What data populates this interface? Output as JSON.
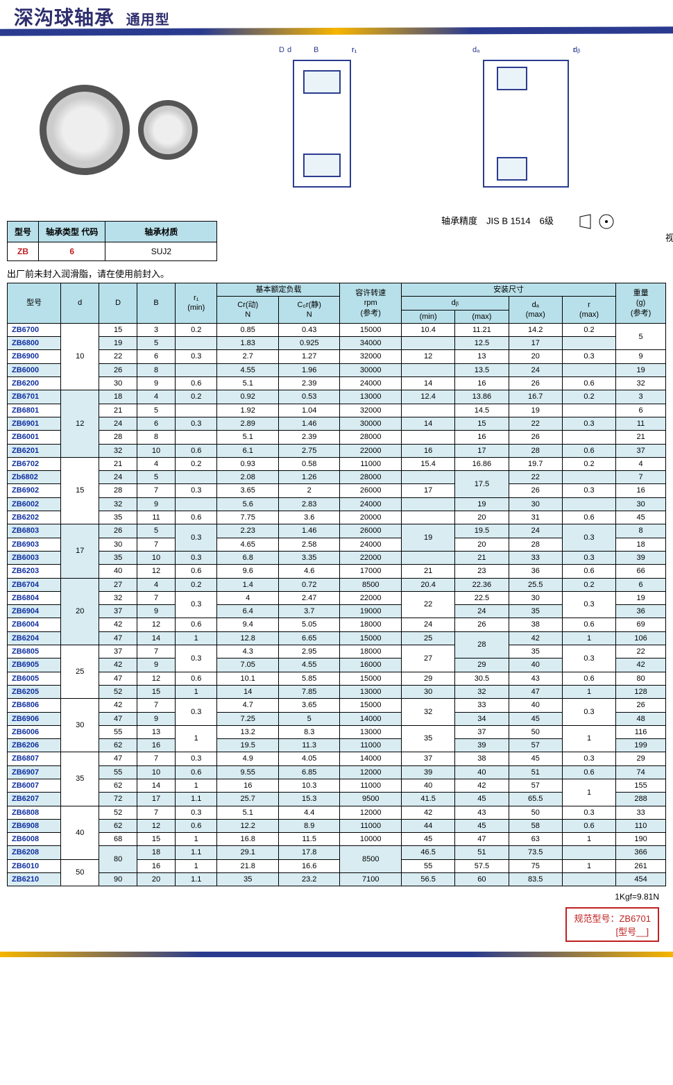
{
  "header": {
    "title": "深沟球轴承",
    "subtitle": "通用型"
  },
  "mini_table": {
    "headers": [
      "型号",
      "轴承类型\n代码",
      "轴承材质"
    ],
    "row": [
      "ZB",
      "6",
      "SUJ2"
    ]
  },
  "note": "出厂前未封入润滑脂，请在使用前封入。",
  "precision": "轴承精度　JIS B 1514　6级",
  "angle_std": "视角标准：第一视角",
  "diagram_labels": {
    "B": "B",
    "r1": "r₁",
    "D": "D",
    "d": "d",
    "da": "dₐ",
    "db": "dᵦ",
    "r": "r"
  },
  "main_headers": {
    "model": "型号",
    "d": "d",
    "D": "D",
    "B": "B",
    "r1": "r₁\n(min)",
    "basic_load": "基本额定负载",
    "Cr": "Cr(动)\nN",
    "Cor": "C₀r(静)\nN",
    "rpm": "容许转速\nrpm\n(参考)",
    "install": "安装尺寸",
    "db": "dᵦ",
    "dbmin": "(min)",
    "dbmax": "(max)",
    "da": "dₐ\n(max)",
    "r": "r\n(max)",
    "weight": "重量\n(g)\n(参考)"
  },
  "d_groups": [
    {
      "d": "10",
      "rows": [
        "ZB6700",
        "ZB6800",
        "ZB6900",
        "ZB6000",
        "ZB6200"
      ]
    },
    {
      "d": "12",
      "rows": [
        "ZB6701",
        "ZB6801",
        "ZB6901",
        "ZB6001",
        "ZB6201"
      ]
    },
    {
      "d": "15",
      "rows": [
        "ZB6702",
        "Zb6802",
        "ZB6902",
        "ZB6002",
        "ZB6202"
      ]
    },
    {
      "d": "17",
      "rows": [
        "ZB6803",
        "ZB6903",
        "ZB6003",
        "ZB6203"
      ]
    },
    {
      "d": "20",
      "rows": [
        "ZB6704",
        "ZB6804",
        "ZB6904",
        "ZB6004",
        "ZB6204"
      ]
    },
    {
      "d": "25",
      "rows": [
        "ZB6805",
        "ZB6905",
        "ZB6005",
        "ZB6205"
      ]
    },
    {
      "d": "30",
      "rows": [
        "ZB6806",
        "ZB6906",
        "ZB6006",
        "ZB6206"
      ]
    },
    {
      "d": "35",
      "rows": [
        "ZB6807",
        "ZB6907",
        "ZB6007",
        "ZB6207"
      ]
    },
    {
      "d": "40",
      "rows": [
        "ZB6808",
        "ZB6908",
        "ZB6008",
        "ZB6208"
      ]
    },
    {
      "d": "50",
      "rows": [
        "ZB6010",
        "ZB6210"
      ]
    }
  ],
  "rows": [
    {
      "m": "ZB6700",
      "D": "15",
      "B": "3",
      "r1": "0.2",
      "Cr": "0.85",
      "Cor": "0.43",
      "rpm": "15000",
      "dbmin": "10.4",
      "dbmax": "11.21",
      "da": "14.2",
      "r": "0.2",
      "g": "5",
      "alt": 0,
      "g_span": 2
    },
    {
      "m": "ZB6800",
      "D": "19",
      "B": "5",
      "r1": "",
      "Cr": "1.83",
      "Cor": "0.925",
      "rpm": "34000",
      "dbmin": "",
      "dbmax": "12.5",
      "da": "17",
      "r": "",
      "g": "",
      "alt": 1
    },
    {
      "m": "ZB6900",
      "D": "22",
      "B": "6",
      "r1": "0.3",
      "Cr": "2.7",
      "Cor": "1.27",
      "rpm": "32000",
      "dbmin": "12",
      "dbmax": "13",
      "da": "20",
      "r": "0.3",
      "g": "9",
      "alt": 0
    },
    {
      "m": "ZB6000",
      "D": "26",
      "B": "8",
      "r1": "",
      "Cr": "4.55",
      "Cor": "1.96",
      "rpm": "30000",
      "dbmin": "",
      "dbmax": "13.5",
      "da": "24",
      "r": "",
      "g": "19",
      "alt": 1
    },
    {
      "m": "ZB6200",
      "D": "30",
      "B": "9",
      "r1": "0.6",
      "Cr": "5.1",
      "Cor": "2.39",
      "rpm": "24000",
      "dbmin": "14",
      "dbmax": "16",
      "da": "26",
      "r": "0.6",
      "g": "32",
      "alt": 0
    },
    {
      "m": "ZB6701",
      "D": "18",
      "B": "4",
      "r1": "0.2",
      "Cr": "0.92",
      "Cor": "0.53",
      "rpm": "13000",
      "dbmin": "12.4",
      "dbmax": "13.86",
      "da": "16.7",
      "r": "0.2",
      "g": "3",
      "alt": 1
    },
    {
      "m": "ZB6801",
      "D": "21",
      "B": "5",
      "r1": "",
      "Cr": "1.92",
      "Cor": "1.04",
      "rpm": "32000",
      "dbmin": "",
      "dbmax": "14.5",
      "da": "19",
      "r": "",
      "g": "6",
      "alt": 0
    },
    {
      "m": "ZB6901",
      "D": "24",
      "B": "6",
      "r1": "0.3",
      "Cr": "2.89",
      "Cor": "1.46",
      "rpm": "30000",
      "dbmin": "14",
      "dbmax": "15",
      "da": "22",
      "r": "0.3",
      "g": "11",
      "alt": 1
    },
    {
      "m": "ZB6001",
      "D": "28",
      "B": "8",
      "r1": "",
      "Cr": "5.1",
      "Cor": "2.39",
      "rpm": "28000",
      "dbmin": "",
      "dbmax": "16",
      "da": "26",
      "r": "",
      "g": "21",
      "alt": 0
    },
    {
      "m": "ZB6201",
      "D": "32",
      "B": "10",
      "r1": "0.6",
      "Cr": "6.1",
      "Cor": "2.75",
      "rpm": "22000",
      "dbmin": "16",
      "dbmax": "17",
      "da": "28",
      "r": "0.6",
      "g": "37",
      "alt": 1
    },
    {
      "m": "ZB6702",
      "D": "21",
      "B": "4",
      "r1": "0.2",
      "Cr": "0.93",
      "Cor": "0.58",
      "rpm": "11000",
      "dbmin": "15.4",
      "dbmax": "16.86",
      "da": "19.7",
      "r": "0.2",
      "g": "4",
      "alt": 0
    },
    {
      "m": "Zb6802",
      "D": "24",
      "B": "5",
      "r1": "",
      "Cr": "2.08",
      "Cor": "1.26",
      "rpm": "28000",
      "dbmin": "",
      "dbmax": "17.5",
      "da": "22",
      "r": "",
      "g": "7",
      "alt": 1,
      "dbmax_span": 2
    },
    {
      "m": "ZB6902",
      "D": "28",
      "B": "7",
      "r1": "0.3",
      "Cr": "3.65",
      "Cor": "2",
      "rpm": "26000",
      "dbmin": "17",
      "dbmax": "",
      "da": "26",
      "r": "0.3",
      "g": "16",
      "alt": 0
    },
    {
      "m": "ZB6002",
      "D": "32",
      "B": "9",
      "r1": "",
      "Cr": "5.6",
      "Cor": "2.83",
      "rpm": "24000",
      "dbmin": "",
      "dbmax": "19",
      "da": "30",
      "r": "",
      "g": "30",
      "alt": 1
    },
    {
      "m": "ZB6202",
      "D": "35",
      "B": "11",
      "r1": "0.6",
      "Cr": "7.75",
      "Cor": "3.6",
      "rpm": "20000",
      "dbmin": "",
      "dbmax": "20",
      "da": "31",
      "r": "0.6",
      "g": "45",
      "alt": 0
    },
    {
      "m": "ZB6803",
      "D": "26",
      "B": "5",
      "r1": "0.3",
      "r1_span": 2,
      "Cr": "2.23",
      "Cor": "1.46",
      "rpm": "26000",
      "dbmin": "19",
      "dbmin_span": 2,
      "dbmax": "19.5",
      "da": "24",
      "r": "0.3",
      "r_span": 2,
      "g": "8",
      "alt": 1
    },
    {
      "m": "ZB6903",
      "D": "30",
      "B": "7",
      "r1": "",
      "Cr": "4.65",
      "Cor": "2.58",
      "rpm": "24000",
      "dbmin": "",
      "dbmax": "20",
      "da": "28",
      "r": "",
      "g": "18",
      "alt": 0
    },
    {
      "m": "ZB6003",
      "D": "35",
      "B": "10",
      "r1": "0.3",
      "Cr": "6.8",
      "Cor": "3.35",
      "rpm": "22000",
      "dbmin": "",
      "dbmax": "21",
      "da": "33",
      "r": "0.3",
      "g": "39",
      "alt": 1
    },
    {
      "m": "ZB6203",
      "D": "40",
      "B": "12",
      "r1": "0.6",
      "Cr": "9.6",
      "Cor": "4.6",
      "rpm": "17000",
      "dbmin": "21",
      "dbmax": "23",
      "da": "36",
      "r": "0.6",
      "g": "66",
      "alt": 0
    },
    {
      "m": "ZB6704",
      "D": "27",
      "B": "4",
      "r1": "0.2",
      "Cr": "1.4",
      "Cor": "0.72",
      "rpm": "8500",
      "dbmin": "20.4",
      "dbmax": "22.36",
      "da": "25.5",
      "r": "0.2",
      "g": "6",
      "alt": 1
    },
    {
      "m": "ZB6804",
      "D": "32",
      "B": "7",
      "r1": "0.3",
      "r1_span": 2,
      "Cr": "4",
      "Cor": "2.47",
      "rpm": "22000",
      "dbmin": "22",
      "dbmin_span": 2,
      "dbmax": "22.5",
      "da": "30",
      "r": "0.3",
      "r_span": 2,
      "g": "19",
      "alt": 0
    },
    {
      "m": "ZB6904",
      "D": "37",
      "B": "9",
      "r1": "",
      "Cr": "6.4",
      "Cor": "3.7",
      "rpm": "19000",
      "dbmin": "",
      "dbmax": "24",
      "da": "35",
      "r": "",
      "g": "36",
      "alt": 1
    },
    {
      "m": "ZB6004",
      "D": "42",
      "B": "12",
      "r1": "0.6",
      "Cr": "9.4",
      "Cor": "5.05",
      "rpm": "18000",
      "dbmin": "24",
      "dbmax": "26",
      "da": "38",
      "r": "0.6",
      "g": "69",
      "alt": 0
    },
    {
      "m": "ZB6204",
      "D": "47",
      "B": "14",
      "r1": "1",
      "Cr": "12.8",
      "Cor": "6.65",
      "rpm": "15000",
      "dbmin": "25",
      "dbmax": "28",
      "dbmax_span": 2,
      "da": "42",
      "r": "1",
      "g": "106",
      "alt": 1
    },
    {
      "m": "ZB6805",
      "D": "37",
      "B": "7",
      "r1": "0.3",
      "r1_span": 2,
      "Cr": "4.3",
      "Cor": "2.95",
      "rpm": "18000",
      "dbmin": "27",
      "dbmin_span": 2,
      "dbmax": "",
      "da": "35",
      "r": "0.3",
      "r_span": 2,
      "g": "22",
      "alt": 0
    },
    {
      "m": "ZB6905",
      "D": "42",
      "B": "9",
      "r1": "",
      "Cr": "7.05",
      "Cor": "4.55",
      "rpm": "16000",
      "dbmin": "",
      "dbmax": "29",
      "da": "40",
      "r": "",
      "g": "42",
      "alt": 1
    },
    {
      "m": "ZB6005",
      "D": "47",
      "B": "12",
      "r1": "0.6",
      "Cr": "10.1",
      "Cor": "5.85",
      "rpm": "15000",
      "dbmin": "29",
      "dbmax": "30.5",
      "da": "43",
      "r": "0.6",
      "g": "80",
      "alt": 0
    },
    {
      "m": "ZB6205",
      "D": "52",
      "B": "15",
      "r1": "1",
      "Cr": "14",
      "Cor": "7.85",
      "rpm": "13000",
      "dbmin": "30",
      "dbmax": "32",
      "da": "47",
      "r": "1",
      "g": "128",
      "alt": 1
    },
    {
      "m": "ZB6806",
      "D": "42",
      "B": "7",
      "r1": "0.3",
      "r1_span": 2,
      "Cr": "4.7",
      "Cor": "3.65",
      "rpm": "15000",
      "dbmin": "32",
      "dbmin_span": 2,
      "dbmax": "33",
      "da": "40",
      "r": "0.3",
      "r_span": 2,
      "g": "26",
      "alt": 0
    },
    {
      "m": "ZB6906",
      "D": "47",
      "B": "9",
      "r1": "",
      "Cr": "7.25",
      "Cor": "5",
      "rpm": "14000",
      "dbmin": "",
      "dbmax": "34",
      "da": "45",
      "r": "",
      "g": "48",
      "alt": 1
    },
    {
      "m": "ZB6006",
      "D": "55",
      "B": "13",
      "r1": "1",
      "r1_span": 2,
      "Cr": "13.2",
      "Cor": "8.3",
      "rpm": "13000",
      "dbmin": "35",
      "dbmin_span": 2,
      "dbmax": "37",
      "da": "50",
      "r": "1",
      "r_span": 2,
      "g": "116",
      "alt": 0
    },
    {
      "m": "ZB6206",
      "D": "62",
      "B": "16",
      "r1": "",
      "Cr": "19.5",
      "Cor": "11.3",
      "rpm": "11000",
      "dbmin": "",
      "dbmax": "39",
      "da": "57",
      "r": "",
      "g": "199",
      "alt": 1
    },
    {
      "m": "ZB6807",
      "D": "47",
      "B": "7",
      "r1": "0.3",
      "Cr": "4.9",
      "Cor": "4.05",
      "rpm": "14000",
      "dbmin": "37",
      "dbmax": "38",
      "da": "45",
      "r": "0.3",
      "g": "29",
      "alt": 0
    },
    {
      "m": "ZB6907",
      "D": "55",
      "B": "10",
      "r1": "0.6",
      "Cr": "9.55",
      "Cor": "6.85",
      "rpm": "12000",
      "dbmin": "39",
      "dbmax": "40",
      "da": "51",
      "r": "0.6",
      "g": "74",
      "alt": 1
    },
    {
      "m": "ZB6007",
      "D": "62",
      "B": "14",
      "r1": "1",
      "Cr": "16",
      "Cor": "10.3",
      "rpm": "11000",
      "dbmin": "40",
      "dbmax": "42",
      "da": "57",
      "r": "1",
      "r_span": 2,
      "g": "155",
      "alt": 0
    },
    {
      "m": "ZB6207",
      "D": "72",
      "B": "17",
      "r1": "1.1",
      "Cr": "25.7",
      "Cor": "15.3",
      "rpm": "9500",
      "dbmin": "41.5",
      "dbmax": "45",
      "da": "65.5",
      "r": "",
      "g": "288",
      "alt": 1
    },
    {
      "m": "ZB6808",
      "D": "52",
      "B": "7",
      "r1": "0.3",
      "Cr": "5.1",
      "Cor": "4.4",
      "rpm": "12000",
      "dbmin": "42",
      "dbmax": "43",
      "da": "50",
      "r": "0.3",
      "g": "33",
      "alt": 0
    },
    {
      "m": "ZB6908",
      "D": "62",
      "B": "12",
      "r1": "0.6",
      "Cr": "12.2",
      "Cor": "8.9",
      "rpm": "11000",
      "dbmin": "44",
      "dbmax": "45",
      "da": "58",
      "r": "0.6",
      "g": "110",
      "alt": 1
    },
    {
      "m": "ZB6008",
      "D": "68",
      "B": "15",
      "r1": "1",
      "Cr": "16.8",
      "Cor": "11.5",
      "rpm": "10000",
      "dbmin": "45",
      "dbmax": "47",
      "da": "63",
      "r": "1",
      "g": "190",
      "alt": 0
    },
    {
      "m": "ZB6208",
      "D": "80",
      "D_span": 2,
      "B": "18",
      "r1": "1.1",
      "Cr": "29.1",
      "Cor": "17.8",
      "rpm": "8500",
      "rpm_span": 2,
      "dbmin": "46.5",
      "dbmax": "51",
      "da": "73.5",
      "r": "",
      "g": "366",
      "alt": 1
    },
    {
      "m": "ZB6010",
      "D": "",
      "B": "16",
      "r1": "1",
      "Cr": "21.8",
      "Cor": "16.6",
      "rpm": "",
      "dbmin": "55",
      "dbmax": "57.5",
      "da": "75",
      "r": "1",
      "g": "261",
      "alt": 0
    },
    {
      "m": "ZB6210",
      "D": "90",
      "B": "20",
      "r1": "1.1",
      "Cr": "35",
      "Cor": "23.2",
      "rpm": "7100",
      "dbmin": "56.5",
      "dbmax": "60",
      "da": "83.5",
      "r": "",
      "g": "454",
      "alt": 1
    }
  ],
  "footer": {
    "kgf": "1Kgf=9.81N",
    "spec": "规范型号：ZB6701",
    "spec2": "[型号__]"
  }
}
